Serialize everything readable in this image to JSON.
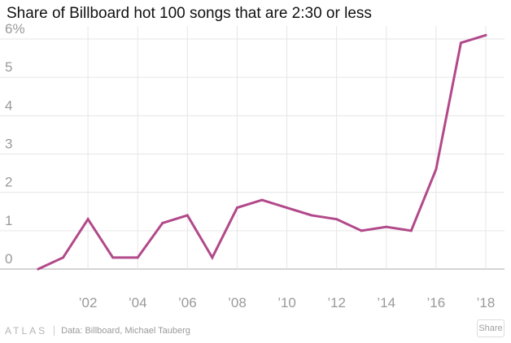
{
  "title": "Share of Billboard hot 100 songs that are 2:30 or less",
  "footer": {
    "logo": "ATLAS",
    "source": "Data:  Billboard, Michael Tauberg",
    "share_label": "Share"
  },
  "colors": {
    "line": "#B2498A",
    "grid": "#e6e6e6",
    "baseline": "#aaaaaa",
    "ticks": "#999999"
  },
  "chart_data": {
    "type": "line",
    "title": "Share of Billboard hot 100 songs that are 2:30 or less",
    "xlabel": "",
    "ylabel": "",
    "x": [
      2000,
      2001,
      2002,
      2003,
      2004,
      2005,
      2006,
      2007,
      2008,
      2009,
      2010,
      2011,
      2012,
      2013,
      2014,
      2015,
      2016,
      2017,
      2018
    ],
    "series": [
      {
        "values": [
          0,
          0.3,
          1.3,
          0.3,
          0.3,
          1.2,
          1.4,
          0.3,
          1.6,
          1.8,
          1.6,
          1.4,
          1.3,
          1.0,
          1.1,
          1.0,
          2.6,
          5.9,
          6.1
        ]
      }
    ],
    "ylim": [
      0,
      6
    ],
    "xlim": [
      2000,
      2018
    ],
    "y_ticks": [
      0,
      1,
      2,
      3,
      4,
      5,
      6
    ],
    "y_tick_labels": [
      "0",
      "1",
      "2",
      "3",
      "4",
      "5",
      "6%"
    ],
    "x_ticks": [
      2002,
      2004,
      2006,
      2008,
      2010,
      2012,
      2014,
      2016,
      2018
    ],
    "x_tick_labels": [
      "’02",
      "’04",
      "’06",
      "’08",
      "’10",
      "’12",
      "’14",
      "’16",
      "’18"
    ],
    "grid": true,
    "legend": "none"
  }
}
